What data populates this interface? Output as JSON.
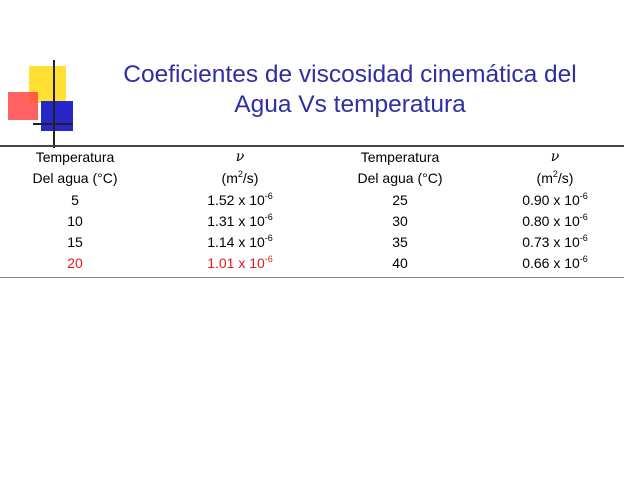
{
  "title": {
    "line1": "Coeficientes de viscosidad cinemática del",
    "line2": "Agua Vs temperatura"
  },
  "table": {
    "header": {
      "temp_label_1": "Temperatura",
      "temp_label_2": "Del agua (°C)",
      "nu_symbol": "ν",
      "nu_unit_pre": "(m",
      "nu_unit_exp": "2",
      "nu_unit_post": "/s)"
    },
    "mantissa_suffix": " x 10",
    "exponent": "-6",
    "rows_left": [
      {
        "temp": "5",
        "value": "1.52"
      },
      {
        "temp": "10",
        "value": "1.31"
      },
      {
        "temp": "15",
        "value": "1.14"
      },
      {
        "temp": "20",
        "value": "1.01"
      }
    ],
    "rows_right": [
      {
        "temp": "25",
        "value": "0.90"
      },
      {
        "temp": "30",
        "value": "0.80"
      },
      {
        "temp": "35",
        "value": "0.73"
      },
      {
        "temp": "40",
        "value": "0.66"
      }
    ]
  },
  "colors": {
    "title": "#2f2fa3",
    "highlight": "#e41a1a",
    "decor_yellow": "#ffe033",
    "decor_red": "#ff4646",
    "decor_blue": "#2626c9"
  }
}
